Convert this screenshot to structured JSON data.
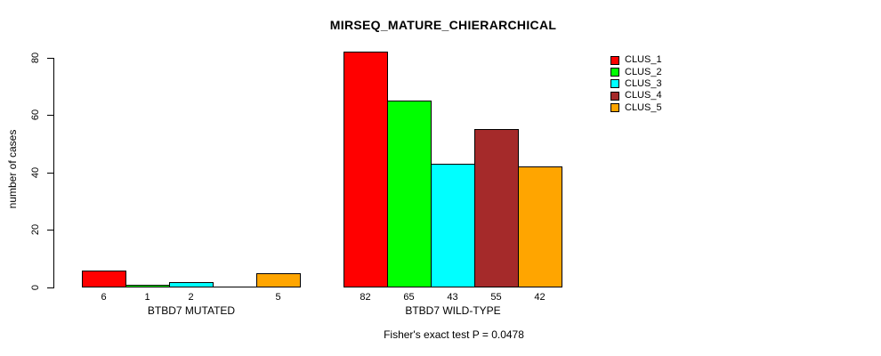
{
  "chart_data": {
    "type": "bar",
    "title": "MIRSEQ_MATURE_CHIERARCHICAL",
    "ylabel": "number of cases",
    "ylim": [
      0,
      80
    ],
    "yticks": [
      0,
      20,
      40,
      60,
      80
    ],
    "grid": false,
    "legend_position": "top-right",
    "series": [
      {
        "name": "CLUS_1",
        "color": "#FF0000"
      },
      {
        "name": "CLUS_2",
        "color": "#00FF00"
      },
      {
        "name": "CLUS_3",
        "color": "#00FFFF"
      },
      {
        "name": "CLUS_4",
        "color": "#A52A2A"
      },
      {
        "name": "CLUS_5",
        "color": "#FFA500"
      }
    ],
    "groups": [
      {
        "label": "BTBD7 MUTATED",
        "values": [
          6,
          1,
          2,
          0,
          5
        ],
        "value_labels": [
          "6",
          "1",
          "2",
          "",
          "5"
        ]
      },
      {
        "label": "BTBD7 WILD-TYPE",
        "values": [
          82,
          65,
          43,
          55,
          42
        ],
        "value_labels": [
          "82",
          "65",
          "43",
          "55",
          "42"
        ]
      }
    ],
    "footnote": "Fisher's exact test P = 0.0478"
  }
}
